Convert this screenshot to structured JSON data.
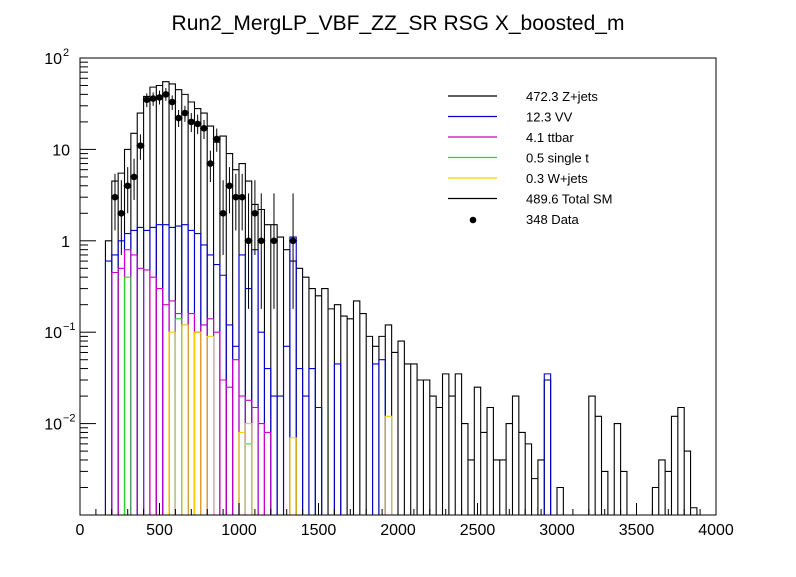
{
  "chart_data": {
    "type": "histogram-stack",
    "title": "Run2_MergLP_VBF_ZZ_SR RSG  X_boosted_m",
    "xlabel": "",
    "ylabel": "",
    "xlim": [
      0,
      4000
    ],
    "ylim": [
      0.001,
      100
    ],
    "yscale": "log",
    "bin_width": 40,
    "x_ticks": [
      "0",
      "500",
      "1000",
      "1500",
      "2000",
      "2500",
      "3000",
      "3500",
      "4000"
    ],
    "y_ticks": [
      {
        "value": 100,
        "mantissa": "10",
        "exponent": "2"
      },
      {
        "value": 10,
        "mantissa": "10",
        "exponent": ""
      },
      {
        "value": 1,
        "mantissa": "1",
        "exponent": ""
      },
      {
        "value": 0.1,
        "mantissa": "10",
        "exponent": "−1"
      },
      {
        "value": 0.01,
        "mantissa": "10",
        "exponent": "−2"
      }
    ],
    "legend_position": "top-right",
    "legend": [
      {
        "label": "472.3 Z+jets",
        "color": "#000000",
        "style": "line"
      },
      {
        "label": "12.3 VV",
        "color": "#0000cc",
        "style": "line"
      },
      {
        "label": "4.1 ttbar",
        "color": "#cc00cc",
        "style": "line"
      },
      {
        "label": "0.5 single t",
        "color": "#33cc33",
        "style": "line"
      },
      {
        "label": "0.3 W+jets",
        "color": "#ffcc00",
        "style": "line"
      },
      {
        "label": "489.6 Total SM",
        "color": "#000000",
        "style": "line"
      },
      {
        "label": "348 Data",
        "color": "#000000",
        "style": "marker"
      }
    ],
    "series": [
      {
        "name": "Total SM",
        "color": "#000000",
        "bins": [
          [
            160,
            1.0
          ],
          [
            200,
            4.5
          ],
          [
            240,
            5.5
          ],
          [
            280,
            10
          ],
          [
            320,
            15
          ],
          [
            360,
            25
          ],
          [
            400,
            38
          ],
          [
            440,
            48
          ],
          [
            480,
            50
          ],
          [
            520,
            55
          ],
          [
            560,
            52
          ],
          [
            600,
            45
          ],
          [
            640,
            40
          ],
          [
            680,
            33
          ],
          [
            720,
            28
          ],
          [
            760,
            25
          ],
          [
            800,
            18
          ],
          [
            840,
            12
          ],
          [
            880,
            14
          ],
          [
            920,
            9
          ],
          [
            960,
            6
          ],
          [
            1000,
            7
          ],
          [
            1040,
            4.5
          ],
          [
            1080,
            2.5
          ],
          [
            1120,
            2.2
          ],
          [
            1160,
            1.5
          ],
          [
            1200,
            1.5
          ],
          [
            1240,
            1.1
          ],
          [
            1280,
            0.8
          ],
          [
            1320,
            0.6
          ],
          [
            1360,
            0.5
          ],
          [
            1400,
            0.4
          ],
          [
            1440,
            0.3
          ],
          [
            1480,
            0.25
          ],
          [
            1520,
            0.3
          ],
          [
            1560,
            0.18
          ],
          [
            1600,
            0.2
          ],
          [
            1640,
            0.15
          ],
          [
            1680,
            0.14
          ],
          [
            1720,
            0.22
          ],
          [
            1760,
            0.16
          ],
          [
            1800,
            0.09
          ],
          [
            1840,
            0.07
          ],
          [
            1880,
            0.09
          ],
          [
            1920,
            0.12
          ],
          [
            1960,
            0.06
          ],
          [
            2000,
            0.08
          ],
          [
            2040,
            0.045
          ],
          [
            2080,
            0.045
          ],
          [
            2120,
            0.03
          ],
          [
            2160,
            0.03
          ],
          [
            2200,
            0.02
          ],
          [
            2240,
            0.015
          ],
          [
            2280,
            0.035
          ],
          [
            2320,
            0.02
          ],
          [
            2360,
            0.035
          ],
          [
            2400,
            0.01
          ],
          [
            2440,
            0.004
          ],
          [
            2480,
            0.025
          ],
          [
            2520,
            0.008
          ],
          [
            2560,
            0.015
          ],
          [
            2600,
            0.004
          ],
          [
            2640,
            0.004
          ],
          [
            2680,
            0.01
          ],
          [
            2720,
            0.02
          ],
          [
            2760,
            0.008
          ],
          [
            2800,
            0.006
          ],
          [
            2840,
            0.0025
          ],
          [
            2880,
            0.004
          ],
          [
            2920,
            0.03
          ],
          [
            3000,
            0.002
          ],
          [
            3200,
            0.02
          ],
          [
            3240,
            0.012
          ],
          [
            3280,
            0.003
          ],
          [
            3360,
            0.01
          ],
          [
            3400,
            0.003
          ],
          [
            3600,
            0.002
          ],
          [
            3640,
            0.004
          ],
          [
            3680,
            0.003
          ],
          [
            3720,
            0.012
          ],
          [
            3760,
            0.015
          ],
          [
            3800,
            0.005
          ],
          [
            3840,
            0.0012
          ]
        ]
      },
      {
        "name": "VV",
        "color": "#0000cc",
        "bins": [
          [
            160,
            0.6
          ],
          [
            200,
            0.7
          ],
          [
            240,
            1.0
          ],
          [
            280,
            1.2
          ],
          [
            320,
            1.3
          ],
          [
            360,
            1.4
          ],
          [
            400,
            1.3
          ],
          [
            440,
            1.4
          ],
          [
            480,
            1.5
          ],
          [
            520,
            1.5
          ],
          [
            560,
            1.4
          ],
          [
            600,
            1.45
          ],
          [
            640,
            1.5
          ],
          [
            680,
            1.3
          ],
          [
            720,
            1.2
          ],
          [
            760,
            0.9
          ],
          [
            800,
            0.7
          ],
          [
            840,
            0.55
          ],
          [
            880,
            0.42
          ],
          [
            920,
            0.12
          ],
          [
            960,
            0.07
          ],
          [
            1000,
            0.7
          ],
          [
            1040,
            0.3
          ],
          [
            1080,
            0.8
          ],
          [
            1120,
            0.1
          ],
          [
            1160,
            0.04
          ],
          [
            1200,
            0.02
          ],
          [
            1240,
            0.02
          ],
          [
            1280,
            0.07
          ],
          [
            1320,
            1.1
          ],
          [
            1360,
            0.04
          ],
          [
            1400,
            0.02
          ],
          [
            1440,
            0.04
          ],
          [
            1480,
            0.015
          ],
          [
            1600,
            0.045
          ],
          [
            1840,
            0.045
          ],
          [
            1880,
            0.05
          ],
          [
            2920,
            0.035
          ]
        ]
      },
      {
        "name": "ttbar",
        "color": "#cc00cc",
        "bins": [
          [
            200,
            0.45
          ],
          [
            240,
            0.5
          ],
          [
            280,
            0.8
          ],
          [
            320,
            0.7
          ],
          [
            360,
            0.5
          ],
          [
            400,
            0.48
          ],
          [
            440,
            0.4
          ],
          [
            480,
            0.3
          ],
          [
            520,
            0.2
          ],
          [
            560,
            0.22
          ],
          [
            600,
            0.16
          ],
          [
            640,
            0.12
          ],
          [
            680,
            0.16
          ],
          [
            720,
            0.1
          ],
          [
            760,
            0.12
          ],
          [
            800,
            0.14
          ],
          [
            840,
            0.1
          ],
          [
            880,
            0.03
          ],
          [
            920,
            0.025
          ],
          [
            960,
            0.05
          ],
          [
            1000,
            0.02
          ],
          [
            1040,
            0.018
          ],
          [
            1080,
            0.015
          ],
          [
            1120,
            0.01
          ],
          [
            1160,
            0.008
          ]
        ]
      },
      {
        "name": "single t",
        "color": "#33cc33",
        "bins": [
          [
            280,
            0.4
          ],
          [
            600,
            0.14
          ],
          [
            1040,
            0.006
          ]
        ]
      },
      {
        "name": "W+jets",
        "color": "#ffcc00",
        "bins": [
          [
            560,
            0.1
          ],
          [
            640,
            0.12
          ],
          [
            720,
            0.1
          ],
          [
            800,
            0.09
          ],
          [
            1000,
            0.008
          ],
          [
            1040,
            0.01
          ],
          [
            1320,
            0.007
          ],
          [
            1920,
            0.012
          ]
        ]
      }
    ],
    "data_points": [
      {
        "x": 220,
        "y": 3,
        "lo": 1.3,
        "hi": 5.4
      },
      {
        "x": 260,
        "y": 2,
        "lo": 0.7,
        "hi": 4.6
      },
      {
        "x": 300,
        "y": 4,
        "lo": 2,
        "hi": 6.4
      },
      {
        "x": 340,
        "y": 5,
        "lo": 2.8,
        "hi": 7.9
      },
      {
        "x": 380,
        "y": 11,
        "lo": 7.7,
        "hi": 14.6
      },
      {
        "x": 420,
        "y": 35,
        "lo": 29,
        "hi": 41
      },
      {
        "x": 460,
        "y": 36,
        "lo": 30,
        "hi": 42
      },
      {
        "x": 500,
        "y": 37,
        "lo": 31,
        "hi": 44
      },
      {
        "x": 540,
        "y": 40,
        "lo": 34,
        "hi": 47
      },
      {
        "x": 580,
        "y": 33,
        "lo": 27,
        "hi": 39
      },
      {
        "x": 620,
        "y": 22,
        "lo": 17.6,
        "hi": 27
      },
      {
        "x": 660,
        "y": 25,
        "lo": 20,
        "hi": 30
      },
      {
        "x": 700,
        "y": 20,
        "lo": 15.5,
        "hi": 25
      },
      {
        "x": 740,
        "y": 19,
        "lo": 14.7,
        "hi": 24
      },
      {
        "x": 780,
        "y": 17,
        "lo": 13,
        "hi": 21
      },
      {
        "x": 820,
        "y": 7,
        "lo": 4.4,
        "hi": 9.7
      },
      {
        "x": 860,
        "y": 13,
        "lo": 9.4,
        "hi": 16.9
      },
      {
        "x": 900,
        "y": 2,
        "lo": 0.7,
        "hi": 4.6
      },
      {
        "x": 940,
        "y": 4,
        "lo": 2,
        "hi": 6.4
      },
      {
        "x": 980,
        "y": 3,
        "lo": 1.3,
        "hi": 5.4
      },
      {
        "x": 1020,
        "y": 3,
        "lo": 1.3,
        "hi": 5.4
      },
      {
        "x": 1060,
        "y": 1,
        "lo": 0.18,
        "hi": 3.3
      },
      {
        "x": 1100,
        "y": 2,
        "lo": 0.7,
        "hi": 4.6
      },
      {
        "x": 1140,
        "y": 1,
        "lo": 0.18,
        "hi": 3.3
      },
      {
        "x": 1220,
        "y": 1,
        "lo": 0.18,
        "hi": 3.3
      },
      {
        "x": 1340,
        "y": 1,
        "lo": 0.18,
        "hi": 3.3
      }
    ]
  }
}
